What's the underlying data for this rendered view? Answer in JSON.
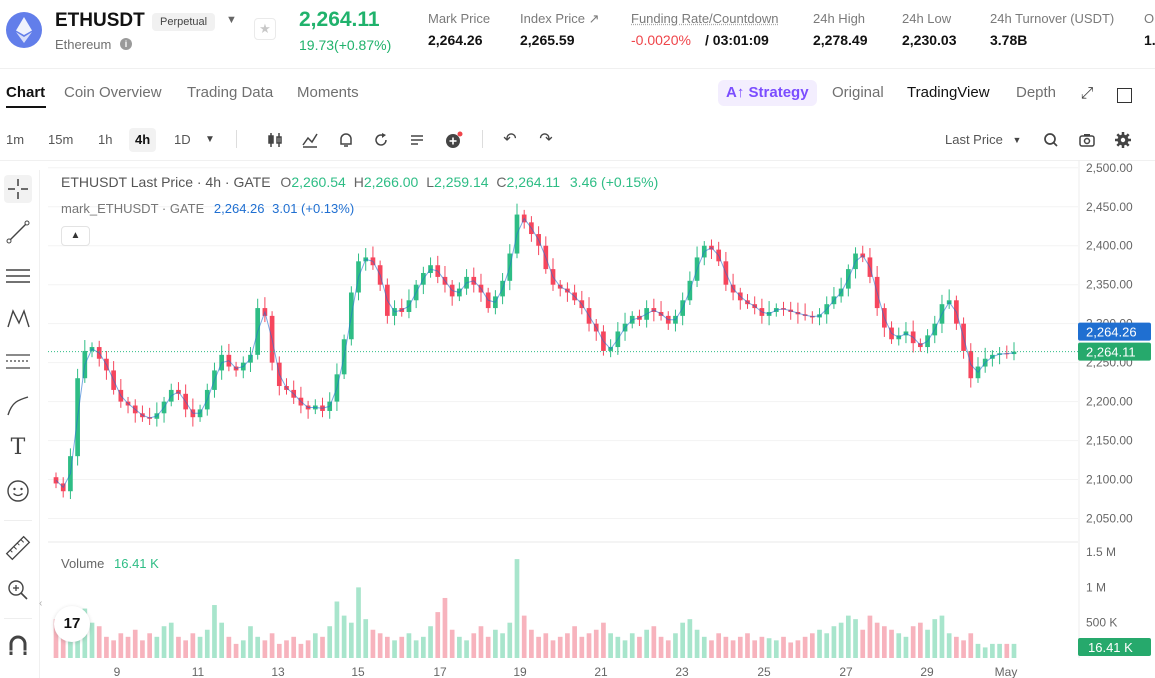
{
  "header": {
    "symbol": "ETHUSDT",
    "contract_type": "Perpetual",
    "coin_name": "Ethereum",
    "last_price": "2,264.11",
    "change": "19.73(+0.87%)",
    "stats": [
      {
        "label": "Mark Price",
        "value": "2,264.26"
      },
      {
        "label": "Index Price ↗",
        "value": "2,265.59"
      },
      {
        "label": "Funding Rate/Countdown",
        "value_rate": "-0.0020%",
        "value_countdown": "/ 03:01:09"
      },
      {
        "label": "24h High",
        "value": "2,278.49"
      },
      {
        "label": "24h Low",
        "value": "2,230.03"
      },
      {
        "label": "24h Turnover (USDT)",
        "value": "3.78B"
      },
      {
        "label": "O",
        "value": "1."
      }
    ]
  },
  "tabs": {
    "left": [
      "Chart",
      "Coin Overview",
      "Trading Data",
      "Moments"
    ],
    "strategy": "Strategy",
    "right": [
      "Original",
      "TradingView",
      "Depth"
    ]
  },
  "toolbar": {
    "intervals": [
      "1m",
      "15m",
      "1h",
      "4h",
      "1D"
    ],
    "price_type": "Last Price"
  },
  "legend": {
    "main": {
      "name": "ETHUSDT Last Price · 4h · GATE",
      "o": "O",
      "o_val": "2,260.54",
      "h": "H",
      "h_val": "2,266.00",
      "l": "L",
      "l_val": "2,259.14",
      "c": "C",
      "c_val": "2,264.11",
      "chg": "3.46 (+0.15%)"
    },
    "mark": {
      "name": "mark_ETHUSDT · GATE",
      "val": "2,264.26",
      "chg": "3.01 (+0.13%)"
    },
    "volume": {
      "label": "Volume",
      "value": "16.41 K"
    }
  },
  "colors": {
    "up": "#2ebd85",
    "down": "#f6465d",
    "mark_line": "#1f6fd1",
    "accent": "#7b4dff"
  },
  "icons": [
    "ethereum-icon",
    "info-icon",
    "star-icon",
    "expand-icon",
    "window-icon",
    "candles-icon",
    "indicator-icon",
    "alert-icon",
    "replay-icon",
    "settings-lines-icon",
    "add-icon",
    "undo-icon",
    "redo-icon",
    "search-icon",
    "camera-icon",
    "gear-icon",
    "crosshair-icon",
    "trendline-icon",
    "horizontal-lines-icon",
    "pattern-icon",
    "fib-icon",
    "brush-icon",
    "text-icon",
    "emoji-icon",
    "ruler-icon",
    "zoom-icon",
    "magnet-icon",
    "tradingview-logo"
  ],
  "chart_data": {
    "type": "candlestick",
    "interval": "4h",
    "y_ticks": [
      "2,500.00",
      "2,450.00",
      "2,400.00",
      "2,350.00",
      "2,300.00",
      "2,250.00",
      "2,200.00",
      "2,150.00",
      "2,100.00",
      "2,050.00"
    ],
    "y_tick_values": [
      2500,
      2450,
      2400,
      2350,
      2300,
      2250,
      2200,
      2150,
      2100,
      2050
    ],
    "ylim": [
      2025,
      2510
    ],
    "x_ticks": [
      "9",
      "11",
      "13",
      "15",
      "17",
      "19",
      "21",
      "23",
      "25",
      "27",
      "29",
      "May"
    ],
    "volume_ticks": [
      "1.5 M",
      "1 M",
      "500 K"
    ],
    "volume_tick_values": [
      1500000,
      1000000,
      500000
    ],
    "current_price_label": "2,264.11",
    "mark_price_label": "2,264.26",
    "current_volume_label": "16.41 K",
    "closes": [
      2095,
      2085,
      2130,
      2230,
      2265,
      2270,
      2255,
      2240,
      2215,
      2200,
      2195,
      2185,
      2180,
      2178,
      2185,
      2200,
      2215,
      2210,
      2190,
      2180,
      2190,
      2215,
      2240,
      2260,
      2245,
      2240,
      2250,
      2260,
      2320,
      2310,
      2250,
      2220,
      2215,
      2205,
      2195,
      2190,
      2195,
      2188,
      2200,
      2235,
      2280,
      2340,
      2380,
      2385,
      2375,
      2350,
      2310,
      2320,
      2315,
      2330,
      2350,
      2365,
      2375,
      2360,
      2350,
      2335,
      2345,
      2360,
      2350,
      2340,
      2320,
      2335,
      2355,
      2390,
      2440,
      2430,
      2415,
      2400,
      2370,
      2350,
      2345,
      2340,
      2330,
      2320,
      2300,
      2290,
      2265,
      2270,
      2290,
      2300,
      2310,
      2305,
      2320,
      2315,
      2310,
      2300,
      2310,
      2330,
      2355,
      2385,
      2400,
      2395,
      2380,
      2350,
      2340,
      2330,
      2325,
      2320,
      2310,
      2315,
      2320,
      2318,
      2315,
      2312,
      2310,
      2308,
      2312,
      2325,
      2335,
      2345,
      2370,
      2390,
      2385,
      2360,
      2320,
      2295,
      2280,
      2285,
      2290,
      2275,
      2270,
      2285,
      2300,
      2325,
      2330,
      2300,
      2265,
      2230,
      2245,
      2255,
      2260,
      2262,
      2261,
      2264.11
    ],
    "volumes": [
      0.55,
      0.4,
      0.6,
      0.35,
      0.7,
      0.5,
      0.45,
      0.3,
      0.25,
      0.35,
      0.3,
      0.4,
      0.25,
      0.35,
      0.3,
      0.45,
      0.5,
      0.3,
      0.25,
      0.35,
      0.3,
      0.4,
      0.75,
      0.5,
      0.3,
      0.2,
      0.25,
      0.45,
      0.3,
      0.25,
      0.35,
      0.2,
      0.25,
      0.3,
      0.2,
      0.25,
      0.35,
      0.3,
      0.45,
      0.8,
      0.6,
      0.5,
      1.0,
      0.55,
      0.4,
      0.35,
      0.3,
      0.25,
      0.3,
      0.35,
      0.25,
      0.3,
      0.45,
      0.65,
      0.85,
      0.4,
      0.3,
      0.25,
      0.35,
      0.45,
      0.3,
      0.4,
      0.35,
      0.5,
      1.4,
      0.6,
      0.4,
      0.3,
      0.35,
      0.25,
      0.3,
      0.35,
      0.45,
      0.3,
      0.35,
      0.4,
      0.5,
      0.35,
      0.3,
      0.25,
      0.35,
      0.3,
      0.4,
      0.45,
      0.3,
      0.25,
      0.35,
      0.5,
      0.55,
      0.4,
      0.3,
      0.25,
      0.35,
      0.3,
      0.25,
      0.3,
      0.35,
      0.25,
      0.3,
      0.28,
      0.25,
      0.3,
      0.22,
      0.25,
      0.3,
      0.35,
      0.4,
      0.35,
      0.45,
      0.5,
      0.6,
      0.55,
      0.4,
      0.6,
      0.5,
      0.45,
      0.4,
      0.35,
      0.3,
      0.45,
      0.5,
      0.4,
      0.55,
      0.6,
      0.35,
      0.3,
      0.25,
      0.35,
      0.2,
      0.15
    ]
  }
}
